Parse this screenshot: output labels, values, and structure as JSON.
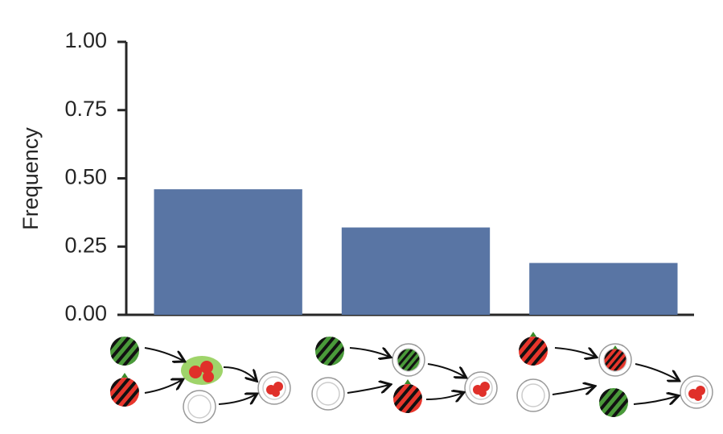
{
  "chart_data": {
    "type": "bar",
    "y_label": "Frequency",
    "categories": [
      null,
      null,
      null
    ],
    "values": [
      0.46,
      0.32,
      0.19
    ],
    "color": "#5975a4",
    "ylim": [
      0,
      1
    ],
    "yticks": [
      {
        "value": 0,
        "label": "0.00"
      },
      {
        "value": 0.25,
        "label": "0.25"
      },
      {
        "value": 0.5,
        "label": "0.50"
      },
      {
        "value": 0.75,
        "label": "0.75"
      },
      {
        "value": 1,
        "label": "1.00"
      }
    ]
  }
}
